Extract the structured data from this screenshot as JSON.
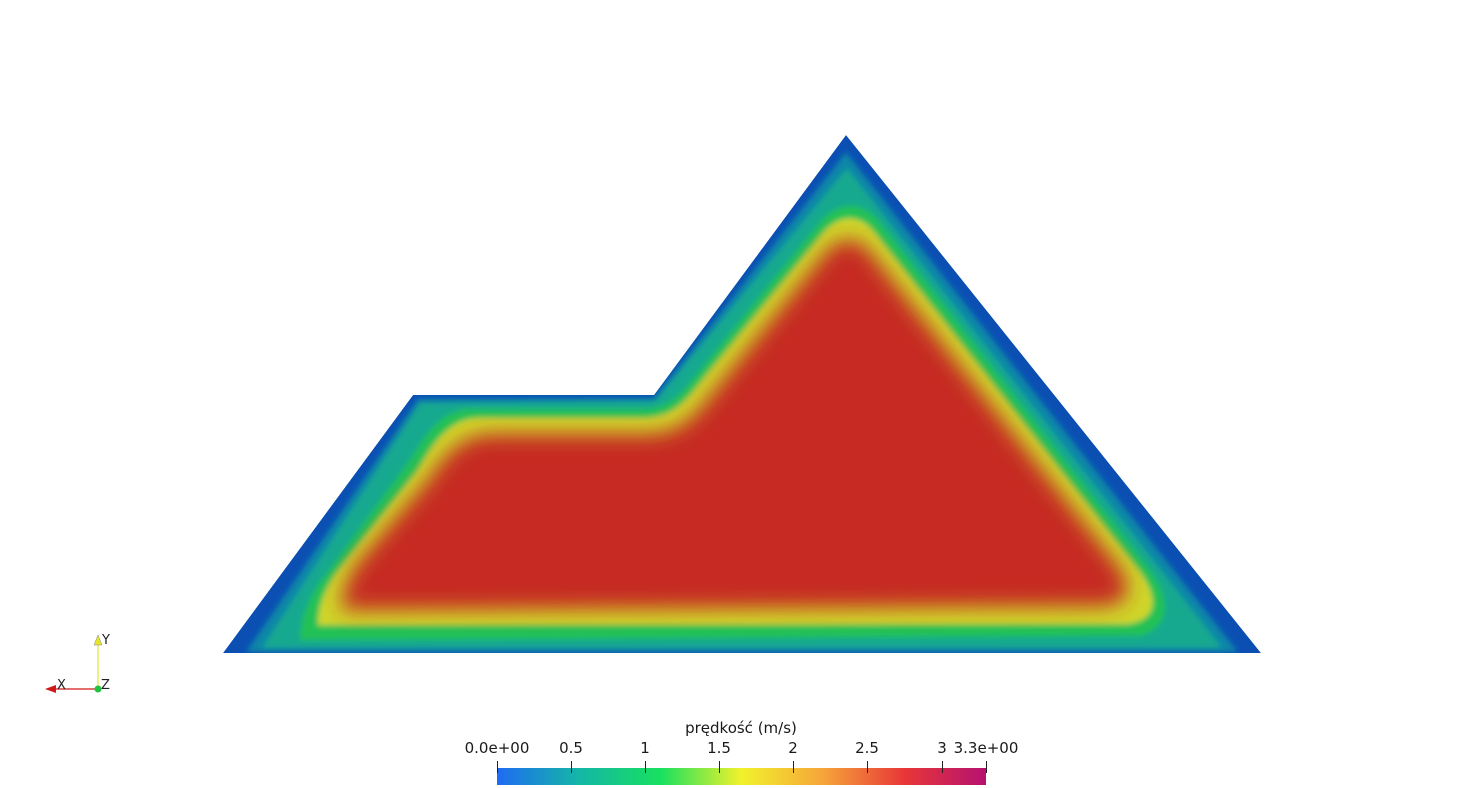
{
  "colorbar": {
    "title": "prędkość (m/s)",
    "ticks": [
      {
        "value": 0.0,
        "label": "0.0e+00"
      },
      {
        "value": 0.5,
        "label": "0.5"
      },
      {
        "value": 1.0,
        "label": "1"
      },
      {
        "value": 1.5,
        "label": "1.5"
      },
      {
        "value": 2.0,
        "label": "2"
      },
      {
        "value": 2.5,
        "label": "2.5"
      },
      {
        "value": 3.0,
        "label": "3"
      },
      {
        "value": 3.3,
        "label": "3.3e+00"
      }
    ],
    "range": [
      0.0,
      3.3
    ],
    "colormap": [
      "#1f6bf2",
      "#14b6a6",
      "#17e060",
      "#f2f22b",
      "#f6a53a",
      "#e83638",
      "#b51270"
    ]
  },
  "field": {
    "wall_color": "#0b4fb3",
    "core_color": "#c62a22"
  },
  "orientation_axes": {
    "x_label": "X",
    "y_label": "Y",
    "z_label": "Z",
    "x_color": "#d01818",
    "y_color": "#e6e62a",
    "z_color": "#20c040"
  }
}
